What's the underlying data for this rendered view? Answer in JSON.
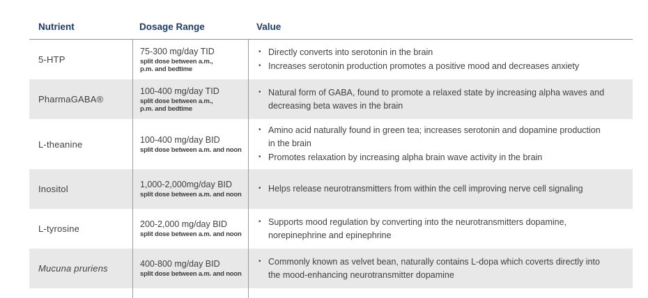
{
  "table": {
    "headers": {
      "nutrient": "Nutrient",
      "dosage": "Dosage Range",
      "value": "Value"
    },
    "rows": [
      {
        "nutrient": "5-HTP",
        "dosage": "75-300 mg/day TID",
        "dosage_note_lines": [
          "split dose between a.m.,",
          "p.m. and bedtime"
        ],
        "bullets": [
          "Directly converts into serotonin in the brain",
          "Increases serotonin production promotes a positive mood and decreases anxiety"
        ]
      },
      {
        "nutrient": "PharmaGABA®",
        "dosage": "100-400 mg/day TID",
        "dosage_note_lines": [
          "split dose between a.m.,",
          "p.m. and bedtime"
        ],
        "bullets": [
          "Natural form of GABA, found to promote a relaxed state by increasing alpha waves and decreasing beta waves in the brain"
        ]
      },
      {
        "nutrient": "L-theanine",
        "dosage": "100-400 mg/day BID",
        "dosage_note_lines": [
          "split dose between a.m. and noon"
        ],
        "bullets": [
          "Amino acid naturally found in green tea; increases serotonin and dopamine production in the brain",
          "Promotes relaxation by increasing alpha brain wave activity in the brain"
        ]
      },
      {
        "nutrient": "Inositol",
        "dosage": "1,000-2,000mg/day BID",
        "dosage_note_lines": [
          "split dose between a.m. and noon"
        ],
        "bullets": [
          "Helps release neurotransmitters from within the cell improving nerve cell signaling"
        ]
      },
      {
        "nutrient": "L-tyrosine",
        "dosage": "200-2,000 mg/day BID",
        "dosage_note_lines": [
          "split dose between a.m. and noon"
        ],
        "bullets": [
          "Supports mood regulation by converting into the neurotransmitters dopamine, norepinephrine and epinephrine"
        ]
      },
      {
        "nutrient": "Mucuna pruriens",
        "dosage": "400-800 mg/day BID",
        "dosage_note_lines": [
          "split dose between a.m. and noon"
        ],
        "bullets": [
          "Commonly known as velvet bean, naturally contains L-dopa which coverts directly into the mood-enhancing neurotransmitter dopamine"
        ]
      }
    ]
  },
  "colors": {
    "header_text": "#1e3a6c",
    "row_alt_bg": "#e8e8e9",
    "body_text": "#3f3f3f",
    "rule": "#9b9b9b"
  }
}
